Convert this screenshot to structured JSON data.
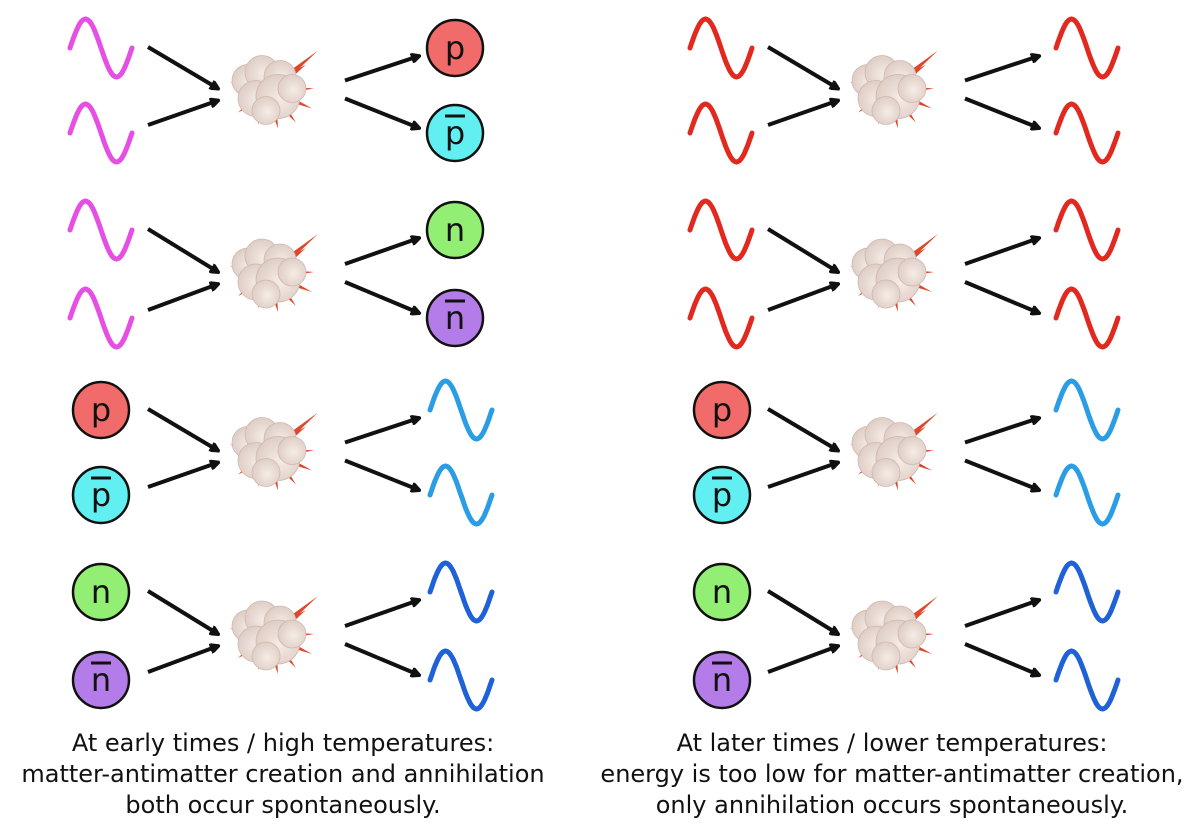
{
  "colors": {
    "photon_pink": "#e64fe3",
    "photon_red": "#e2291f",
    "photon_lightblue": "#2b9de4",
    "photon_blue": "#1f62d8",
    "proton": "#f26b6b",
    "antiproton": "#62eff2",
    "neutron": "#93ee74",
    "antineutron": "#b47ce9",
    "arrow": "#111111"
  },
  "panels": [
    {
      "rows": [
        {
          "inputs": [
            {
              "type": "wave",
              "color": "photon_pink"
            },
            {
              "type": "wave",
              "color": "photon_pink"
            }
          ],
          "outputs": [
            {
              "type": "particle",
              "label": "p",
              "bar": false,
              "color": "proton"
            },
            {
              "type": "particle",
              "label": "p",
              "bar": true,
              "color": "antiproton"
            }
          ]
        },
        {
          "inputs": [
            {
              "type": "wave",
              "color": "photon_pink"
            },
            {
              "type": "wave",
              "color": "photon_pink"
            }
          ],
          "outputs": [
            {
              "type": "particle",
              "label": "n",
              "bar": false,
              "color": "neutron"
            },
            {
              "type": "particle",
              "label": "n",
              "bar": true,
              "color": "antineutron"
            }
          ]
        },
        {
          "inputs": [
            {
              "type": "particle",
              "label": "p",
              "bar": false,
              "color": "proton"
            },
            {
              "type": "particle",
              "label": "p",
              "bar": true,
              "color": "antiproton"
            }
          ],
          "outputs": [
            {
              "type": "wave",
              "color": "photon_lightblue"
            },
            {
              "type": "wave",
              "color": "photon_lightblue"
            }
          ]
        },
        {
          "inputs": [
            {
              "type": "particle",
              "label": "n",
              "bar": false,
              "color": "neutron"
            },
            {
              "type": "particle",
              "label": "n",
              "bar": true,
              "color": "antineutron"
            }
          ],
          "outputs": [
            {
              "type": "wave",
              "color": "photon_blue"
            },
            {
              "type": "wave",
              "color": "photon_blue"
            }
          ]
        }
      ],
      "caption": [
        "At early times / high temperatures:",
        "matter-antimatter creation and annihilation",
        "both occur spontaneously."
      ]
    },
    {
      "rows": [
        {
          "inputs": [
            {
              "type": "wave",
              "color": "photon_red"
            },
            {
              "type": "wave",
              "color": "photon_red"
            }
          ],
          "outputs": [
            {
              "type": "wave",
              "color": "photon_red"
            },
            {
              "type": "wave",
              "color": "photon_red"
            }
          ]
        },
        {
          "inputs": [
            {
              "type": "wave",
              "color": "photon_red"
            },
            {
              "type": "wave",
              "color": "photon_red"
            }
          ],
          "outputs": [
            {
              "type": "wave",
              "color": "photon_red"
            },
            {
              "type": "wave",
              "color": "photon_red"
            }
          ]
        },
        {
          "inputs": [
            {
              "type": "particle",
              "label": "p",
              "bar": false,
              "color": "proton"
            },
            {
              "type": "particle",
              "label": "p",
              "bar": true,
              "color": "antiproton"
            }
          ],
          "outputs": [
            {
              "type": "wave",
              "color": "photon_lightblue"
            },
            {
              "type": "wave",
              "color": "photon_lightblue"
            }
          ]
        },
        {
          "inputs": [
            {
              "type": "particle",
              "label": "n",
              "bar": false,
              "color": "neutron"
            },
            {
              "type": "particle",
              "label": "n",
              "bar": true,
              "color": "antineutron"
            }
          ],
          "outputs": [
            {
              "type": "wave",
              "color": "photon_blue"
            },
            {
              "type": "wave",
              "color": "photon_blue"
            }
          ]
        }
      ],
      "caption": [
        "At later times / lower temperatures:",
        "energy is too low for matter-antimatter creation,",
        "only annihilation occurs spontaneously."
      ]
    }
  ]
}
